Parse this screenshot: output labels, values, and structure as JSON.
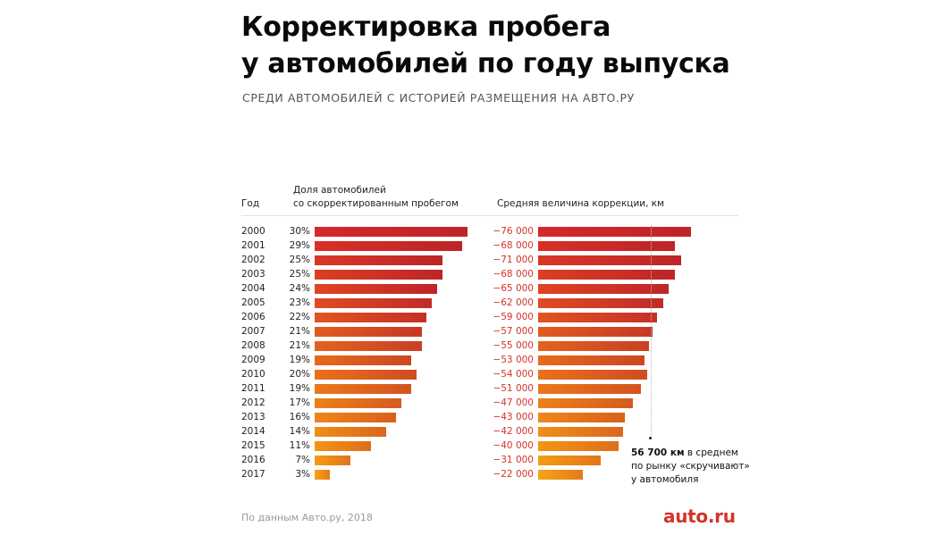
{
  "title_lines": [
    "Корректировка пробега",
    "у автомобилей по году выпуска"
  ],
  "subtitle": "СРЕДИ АВТОМОБИЛЕЙ С ИСТОРИЕЙ РАЗМЕЩЕНИЯ НА АВТО.РУ",
  "headers": {
    "year": "Год",
    "share_line1": "Доля автомобилей",
    "share_line2": "со скорректированным пробегом",
    "correction": "Средняя величина коррекции, км"
  },
  "annotation": {
    "bold": "56 700 км",
    "line1_rest": " в среднем",
    "line2": "по рынку «скручивают»",
    "line3": "у автомобиля"
  },
  "source": "По данным Авто.ру, 2018",
  "logo": "auto.ru",
  "colors": {
    "accent_red": "#d4332b",
    "dark_red": "#c0262a",
    "orange": "#f59a15"
  },
  "chart_data": [
    {
      "type": "bar",
      "orientation": "horizontal",
      "title": "Доля автомобилей со скорректированным пробегом",
      "categories": [
        "2000",
        "2001",
        "2002",
        "2003",
        "2004",
        "2005",
        "2006",
        "2007",
        "2008",
        "2009",
        "2010",
        "2011",
        "2012",
        "2013",
        "2014",
        "2015",
        "2016",
        "2017"
      ],
      "values": [
        30,
        29,
        25,
        25,
        24,
        23,
        22,
        21,
        21,
        19,
        20,
        19,
        17,
        16,
        14,
        11,
        7,
        3
      ],
      "labels": [
        "30%",
        "29%",
        "25%",
        "25%",
        "24%",
        "23%",
        "22%",
        "21%",
        "21%",
        "19%",
        "20%",
        "19%",
        "17%",
        "16%",
        "14%",
        "11%",
        "7%",
        "3%"
      ],
      "unit": "%",
      "xlim": [
        0,
        30
      ]
    },
    {
      "type": "bar",
      "orientation": "horizontal",
      "title": "Средняя величина коррекции, км",
      "categories": [
        "2000",
        "2001",
        "2002",
        "2003",
        "2004",
        "2005",
        "2006",
        "2007",
        "2008",
        "2009",
        "2010",
        "2011",
        "2012",
        "2013",
        "2014",
        "2015",
        "2016",
        "2017"
      ],
      "values": [
        -76000,
        -68000,
        -71000,
        -68000,
        -65000,
        -62000,
        -59000,
        -57000,
        -55000,
        -53000,
        -54000,
        -51000,
        -47000,
        -43000,
        -42000,
        -40000,
        -31000,
        -22000
      ],
      "labels": [
        "−76 000",
        "−68 000",
        "−71 000",
        "−68 000",
        "−65 000",
        "−62 000",
        "−59 000",
        "−57 000",
        "−55 000",
        "−53 000",
        "−54 000",
        "−51 000",
        "−47 000",
        "−43 000",
        "−42 000",
        "−40 000",
        "−31 000",
        "−22 000"
      ],
      "reference_line": {
        "value": -56700,
        "label": "56 700 км в среднем по рынку «скручивают» у автомобиля"
      },
      "xlim": [
        0,
        76000
      ]
    }
  ]
}
